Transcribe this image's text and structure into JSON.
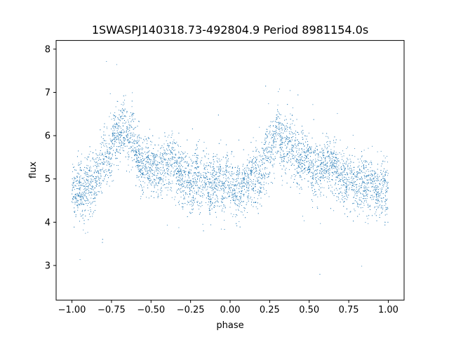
{
  "chart_data": {
    "type": "scatter",
    "title": "1SWASPJ140318.73-492804.9 Period 8981154.0s",
    "xlabel": "phase",
    "ylabel": "flux",
    "xlim": [
      -1.1,
      1.1
    ],
    "ylim": [
      2.2,
      8.2
    ],
    "xticks": [
      -1.0,
      -0.75,
      -0.5,
      -0.25,
      0.0,
      0.25,
      0.5,
      0.75,
      1.0
    ],
    "xtick_labels": [
      "−1.00",
      "−0.75",
      "−0.50",
      "−0.25",
      "0.00",
      "0.25",
      "0.50",
      "0.75",
      "1.00"
    ],
    "yticks": [
      3,
      4,
      5,
      6,
      7,
      8
    ],
    "ytick_labels": [
      "3",
      "4",
      "5",
      "6",
      "7",
      "8"
    ],
    "grid": false,
    "legend": "none",
    "marker_color": "#1f77b4",
    "series": [
      {
        "profile": {
          "phase": [
            0.0,
            0.04,
            0.08,
            0.12,
            0.16,
            0.2,
            0.24,
            0.28,
            0.32,
            0.36,
            0.4,
            0.44,
            0.48,
            0.52,
            0.56,
            0.6,
            0.64,
            0.68,
            0.72,
            0.76,
            0.8,
            0.84,
            0.88,
            0.92,
            0.96,
            1.0
          ],
          "flux": [
            4.85,
            4.55,
            4.65,
            4.9,
            5.15,
            5.25,
            5.5,
            5.9,
            6.05,
            5.95,
            5.75,
            5.5,
            5.35,
            5.25,
            5.3,
            5.35,
            5.25,
            5.2,
            5.1,
            4.95,
            4.85,
            4.9,
            4.85,
            4.75,
            4.9,
            4.85
          ]
        },
        "scatter_sd": 0.33,
        "n_points": 7000
      }
    ]
  }
}
